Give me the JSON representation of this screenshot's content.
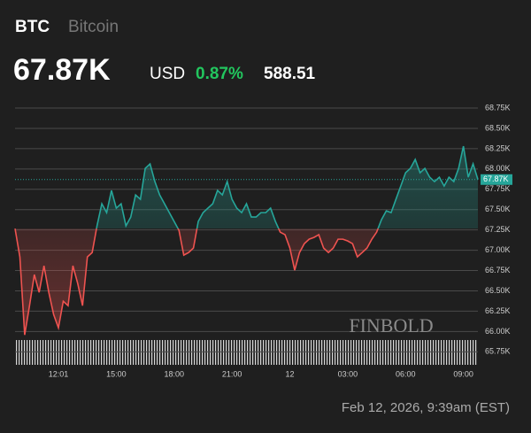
{
  "header": {
    "symbol": "BTC",
    "name": "Bitcoin",
    "price": "67.87K",
    "currency": "USD",
    "change_pct": "0.87%",
    "change": "588.51"
  },
  "footer": "Feb 12, 2026, 9:39am (EST)",
  "chart_data": {
    "type": "line",
    "watermark": "FINBOLD",
    "categories": [
      null,
      null,
      null,
      null,
      null,
      null,
      null,
      null,
      null,
      "12:01",
      null,
      null,
      null,
      null,
      null,
      null,
      null,
      null,
      null,
      null,
      null,
      "15:00",
      null,
      null,
      null,
      null,
      null,
      null,
      null,
      null,
      null,
      null,
      null,
      "18:00",
      null,
      null,
      null,
      null,
      null,
      null,
      null,
      null,
      null,
      null,
      null,
      "21:00",
      null,
      null,
      null,
      null,
      null,
      null,
      null,
      null,
      null,
      null,
      null,
      "12",
      null,
      null,
      null,
      null,
      null,
      null,
      null,
      null,
      null,
      null,
      null,
      "03:00",
      null,
      null,
      null,
      null,
      null,
      null,
      null,
      null,
      null,
      null,
      null,
      "06:00",
      null,
      null,
      null,
      null,
      null,
      null,
      null,
      null,
      null,
      null,
      null,
      "09:00",
      null,
      null,
      null
    ],
    "series": [
      {
        "color_up": "#26a69a",
        "color_down": "#ef5350",
        "values": [
          67267,
          66918,
          65958,
          66318,
          66700,
          66482,
          66809,
          66482,
          66210,
          66046,
          66373,
          66318,
          66809,
          66591,
          66318,
          66918,
          66972,
          67300,
          67572,
          67463,
          67736,
          67518,
          67572,
          67300,
          67409,
          67681,
          67627,
          68008,
          68063,
          67845,
          67681,
          67572,
          67463,
          67354,
          67245,
          66940,
          66972,
          67027,
          67354,
          67463,
          67518,
          67572,
          67736,
          67681,
          67845,
          67627,
          67518,
          67463,
          67572,
          67409,
          67409,
          67463,
          67463,
          67518,
          67354,
          67223,
          67191,
          67027,
          66754,
          66972,
          67081,
          67136,
          67158,
          67191,
          67027,
          66972,
          67027,
          67136,
          67136,
          67114,
          67081,
          66918,
          66972,
          67027,
          67136,
          67223,
          67376,
          67485,
          67463,
          67627,
          67790,
          67954,
          68008,
          68117,
          67954,
          68008,
          67899,
          67845,
          67899,
          67790,
          67899,
          67845,
          68008,
          68281,
          67899,
          68063,
          67870
        ]
      }
    ],
    "price_line": {
      "value": 67870,
      "label": "67.87K"
    },
    "ylim": [
      65590,
      68990
    ],
    "yticks": [
      {
        "value": 65750,
        "label": "65.75K"
      },
      {
        "value": 66000,
        "label": "66.00K"
      },
      {
        "value": 66250,
        "label": "66.25K"
      },
      {
        "value": 66500,
        "label": "66.50K"
      },
      {
        "value": 66750,
        "label": "66.75K"
      },
      {
        "value": 67000,
        "label": "67.00K"
      },
      {
        "value": 67250,
        "label": "67.25K"
      },
      {
        "value": 67500,
        "label": "67.50K"
      },
      {
        "value": 67750,
        "label": "67.75K"
      },
      {
        "value": 68000,
        "label": "68.00K"
      },
      {
        "value": 68250,
        "label": "68.25K"
      },
      {
        "value": 68500,
        "label": "68.50K"
      },
      {
        "value": 68750,
        "label": "68.75K"
      }
    ],
    "grid": true
  }
}
